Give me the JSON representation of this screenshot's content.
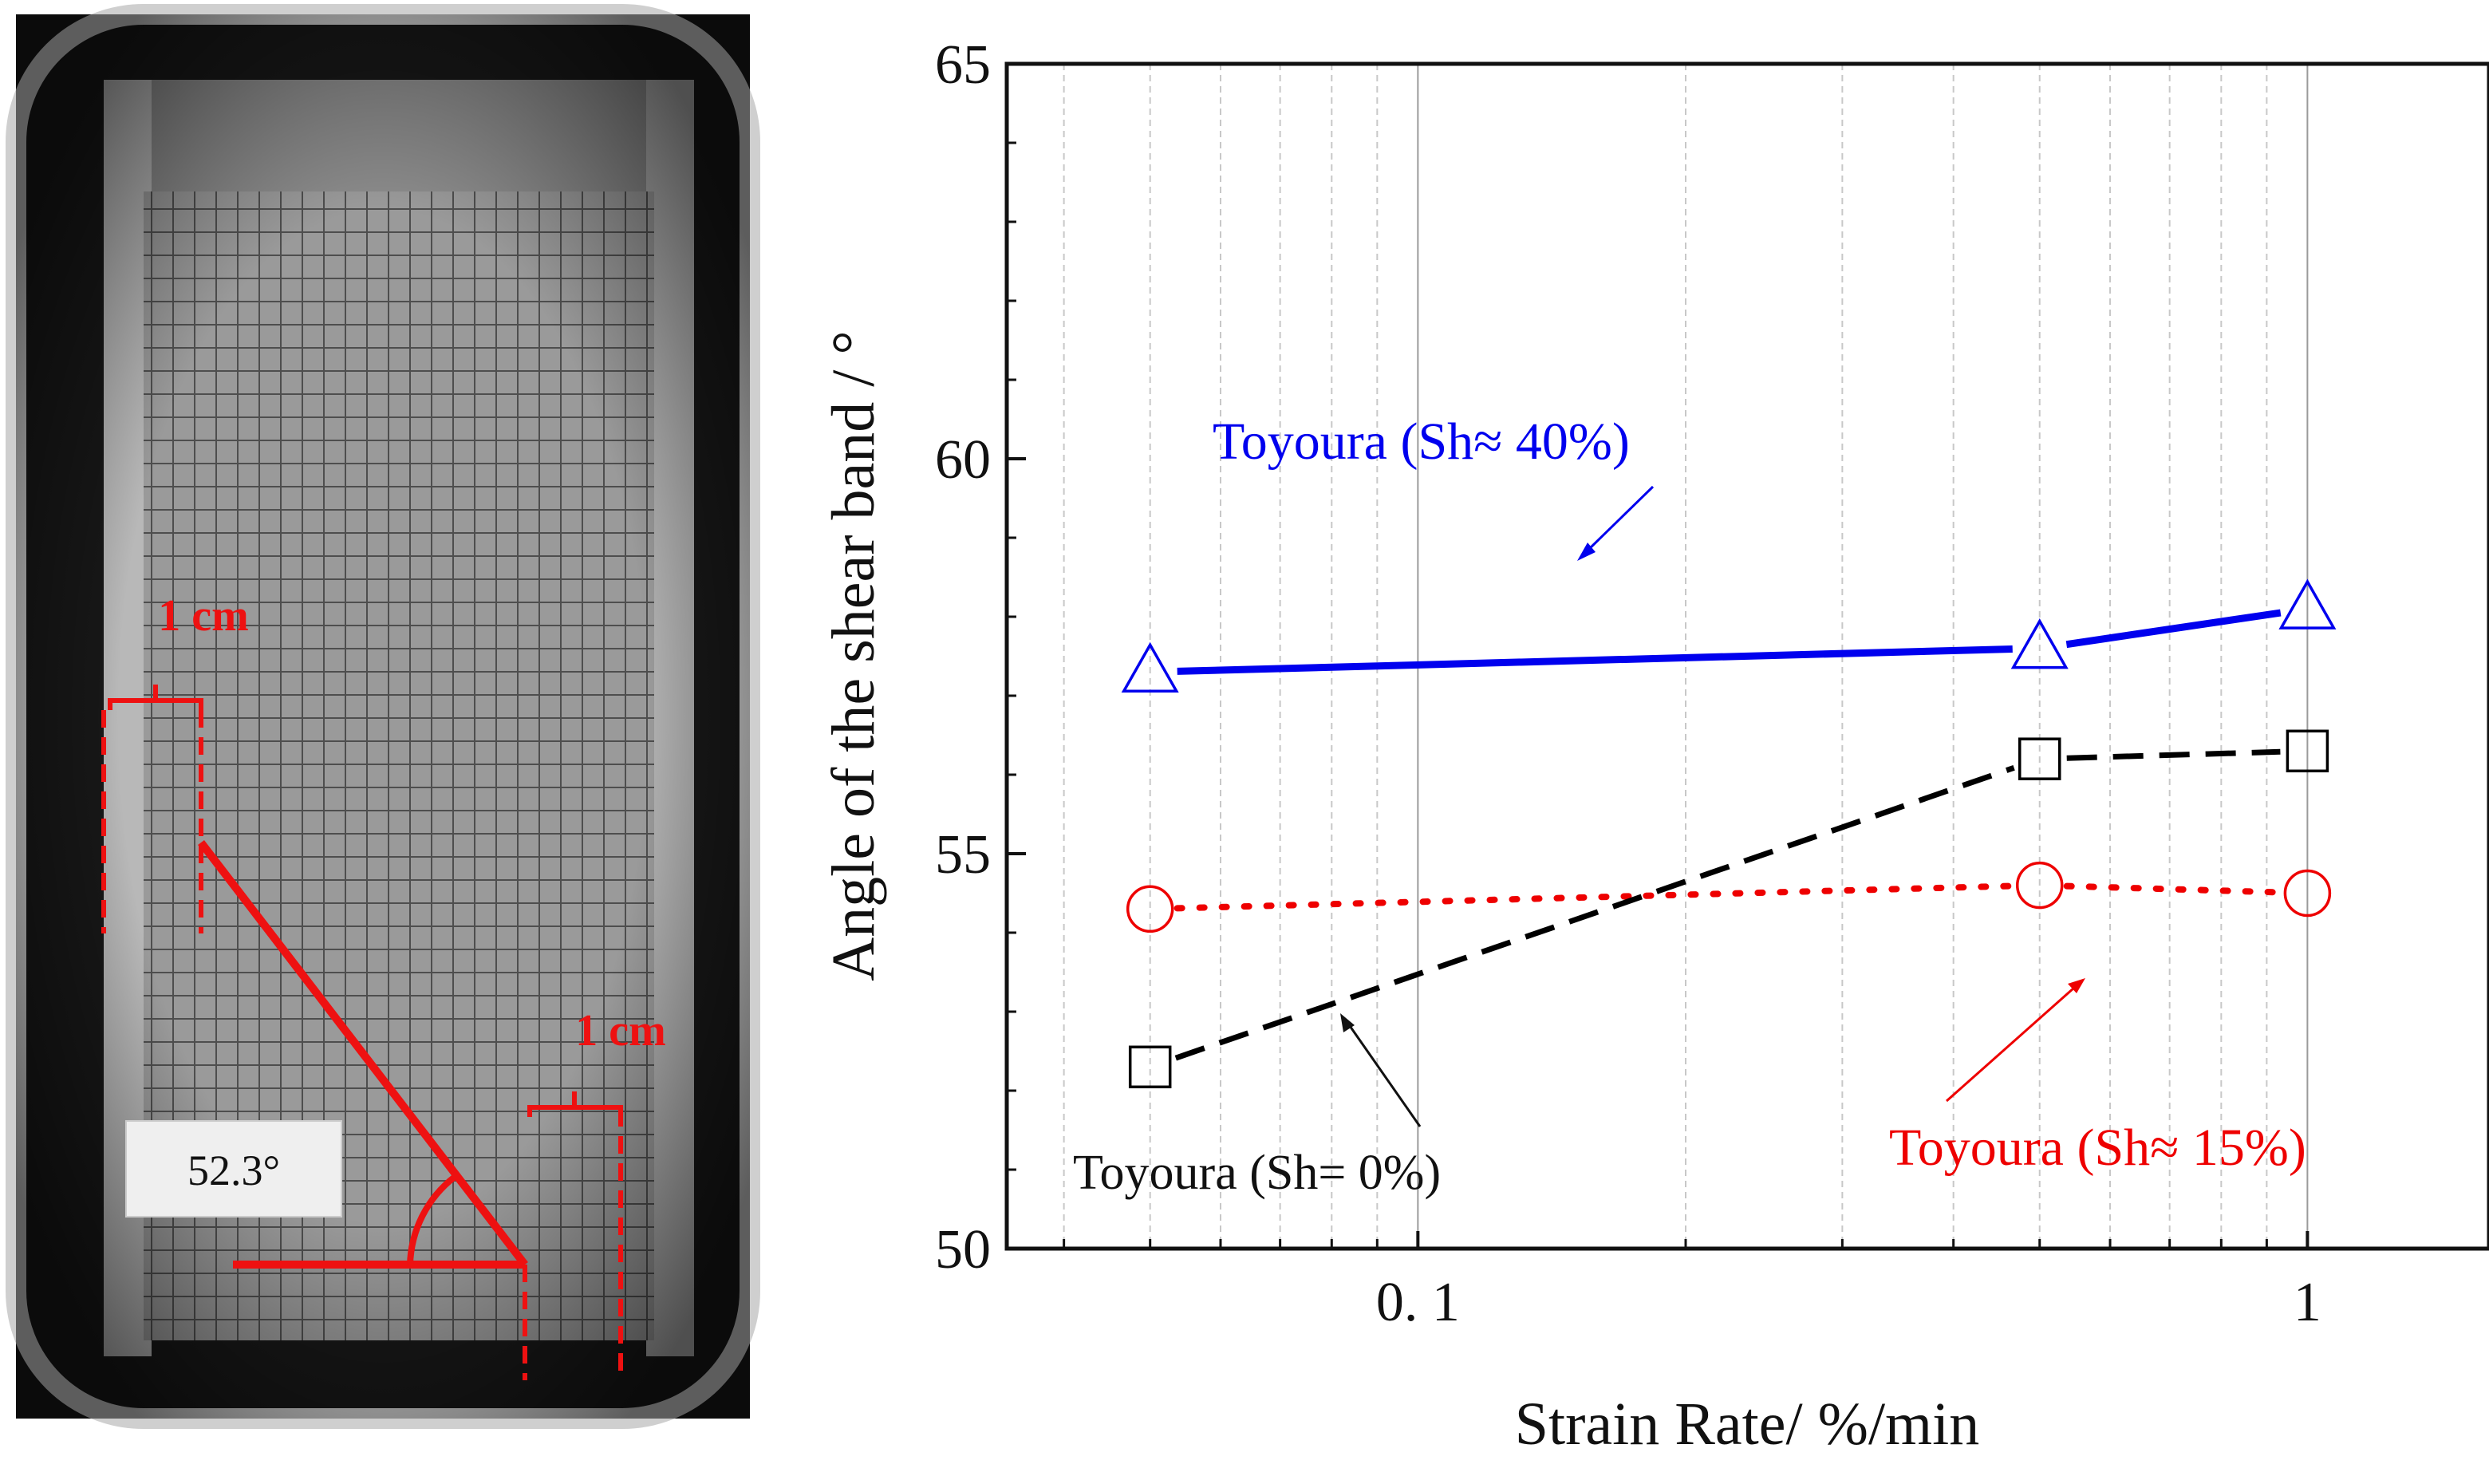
{
  "photo": {
    "angle_label": "52.3°",
    "scale_label_top": "1 cm",
    "scale_label_bottom": "1 cm",
    "annotation_color": "#ee1111"
  },
  "chart_data": {
    "type": "line",
    "xscale": "log",
    "xlabel": "Strain Rate/ %/min",
    "ylabel": "Angle of the shear band / °",
    "xlim": [
      0.0345,
      1.6
    ],
    "ylim": [
      50,
      65
    ],
    "x_ticks": [
      {
        "value": 0.1,
        "label": "0. 1"
      },
      {
        "value": 1,
        "label": "1"
      }
    ],
    "y_ticks": [
      {
        "value": 50,
        "label": "50"
      },
      {
        "value": 55,
        "label": "55"
      },
      {
        "value": 60,
        "label": "60"
      },
      {
        "value": 65,
        "label": "65"
      }
    ],
    "grid": true,
    "series": [
      {
        "key": "sh40",
        "name": "Toyoura (Sh≈ 40%)",
        "color": "#0000ee",
        "marker": "triangle",
        "line": "solid",
        "x": [
          0.05,
          0.5,
          1
        ],
        "values": [
          57.3,
          57.6,
          58.1
        ]
      },
      {
        "key": "sh15",
        "name": "Toyoura (Sh≈ 15%)",
        "color": "#ee0000",
        "marker": "circle",
        "line": "dotted",
        "x": [
          0.05,
          0.5,
          1
        ],
        "values": [
          54.3,
          54.6,
          54.5
        ]
      },
      {
        "key": "sh0",
        "name": "Toyoura (Sh= 0%)",
        "color": "#000000",
        "marker": "square",
        "line": "dashed",
        "x": [
          0.05,
          0.5,
          1
        ],
        "values": [
          52.3,
          56.2,
          56.3
        ]
      }
    ]
  }
}
